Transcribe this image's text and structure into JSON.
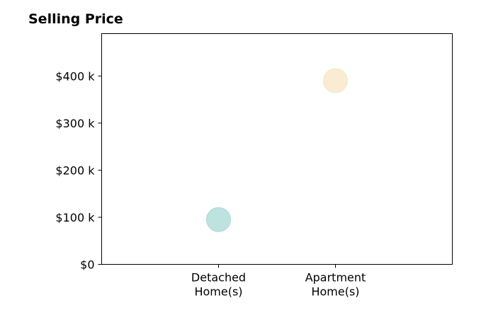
{
  "chart_data": {
    "type": "scatter",
    "title": "Selling Price",
    "xlabel": "",
    "ylabel": "",
    "categories": [
      [
        "Detached",
        "Home(s)"
      ],
      [
        "Apartment",
        "Home(s)"
      ]
    ],
    "x_range": [
      0,
      3
    ],
    "x_positions": [
      1,
      2
    ],
    "y_ticks": [
      {
        "value": 0,
        "label": "$0"
      },
      {
        "value": 100000,
        "label": "$100 k"
      },
      {
        "value": 200000,
        "label": "$200 k"
      },
      {
        "value": 300000,
        "label": "$300 k"
      },
      {
        "value": 400000,
        "label": "$400 k"
      }
    ],
    "ylim": [
      0,
      490000
    ],
    "grid": false,
    "points": [
      {
        "category": "Detached Home(s)",
        "x": 1,
        "y": 95000,
        "color": "#a8d8d6"
      },
      {
        "category": "Apartment Home(s)",
        "x": 2,
        "y": 390000,
        "color": "#f7e6c4"
      }
    ]
  }
}
